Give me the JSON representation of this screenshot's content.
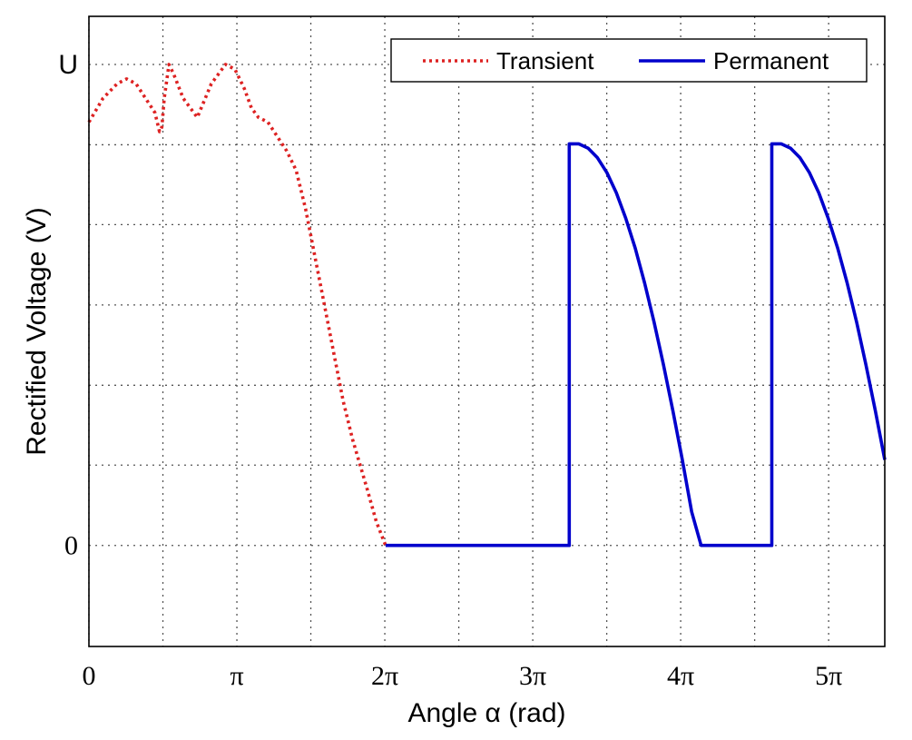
{
  "chart_data": {
    "type": "line",
    "title": "",
    "xlabel": "Angle α (rad)",
    "ylabel": "Rectified Voltage (V)",
    "xlim": [
      0,
      16.9
    ],
    "ylim": [
      -0.21,
      1.1
    ],
    "grid": true,
    "legend_position": "top-right",
    "x_ticks": [
      {
        "value": 0,
        "label": "0"
      },
      {
        "value": 3.14159,
        "label": "π"
      },
      {
        "value": 6.28319,
        "label": "2π"
      },
      {
        "value": 9.42478,
        "label": "3π"
      },
      {
        "value": 12.56637,
        "label": "4π"
      },
      {
        "value": 15.70796,
        "label": "5π"
      }
    ],
    "x_grid_values": [
      0,
      1.571,
      3.142,
      4.712,
      6.283,
      7.854,
      9.425,
      10.996,
      12.566,
      14.137,
      15.708
    ],
    "y_ticks": [
      {
        "value": 0,
        "label": "0"
      },
      {
        "value": 1,
        "label": "U"
      }
    ],
    "y_grid_values": [
      0,
      0.167,
      0.333,
      0.5,
      0.667,
      0.833,
      1.0
    ],
    "series": [
      {
        "name": "Transient",
        "style": "dotted",
        "color": "#dd2222",
        "x": [
          0.0,
          0.3,
          0.6,
          0.8,
          1.0,
          1.2,
          1.4,
          1.5,
          1.55,
          1.6,
          1.7,
          1.8,
          2.0,
          2.3,
          2.6,
          2.9,
          3.1,
          3.3,
          3.45,
          3.6,
          3.8,
          4.0,
          4.2,
          4.4,
          4.6,
          4.8,
          5.0,
          5.2,
          5.4,
          5.6,
          5.9,
          6.1,
          6.3
        ],
        "y": [
          0.88,
          0.93,
          0.96,
          0.97,
          0.96,
          0.93,
          0.9,
          0.86,
          0.87,
          0.93,
          1.0,
          0.98,
          0.93,
          0.89,
          0.96,
          1.0,
          0.99,
          0.95,
          0.91,
          0.89,
          0.88,
          0.85,
          0.82,
          0.78,
          0.7,
          0.6,
          0.5,
          0.4,
          0.3,
          0.22,
          0.12,
          0.05,
          0.0
        ]
      },
      {
        "name": "Permanent",
        "style": "solid",
        "color": "#0000cc",
        "x": [
          6.3,
          10.2,
          10.2,
          10.4,
          10.6,
          10.8,
          11.0,
          11.2,
          11.4,
          11.6,
          11.8,
          12.0,
          12.2,
          12.4,
          12.6,
          12.8,
          13.0,
          13.2,
          13.4,
          13.6,
          13.8,
          14.0,
          14.2,
          14.5,
          14.5,
          14.7,
          14.9,
          15.1,
          15.3,
          15.5,
          15.7,
          15.9,
          16.1,
          16.3,
          16.5,
          16.7,
          16.9
        ],
        "y": [
          0.0,
          0.0,
          0.835,
          0.835,
          0.826,
          0.806,
          0.775,
          0.733,
          0.68,
          0.618,
          0.546,
          0.465,
          0.376,
          0.28,
          0.178,
          0.07,
          0.0,
          0.0,
          0.0,
          0.0,
          0.0,
          0.0,
          0.0,
          0.0,
          0.835,
          0.835,
          0.826,
          0.806,
          0.775,
          0.733,
          0.68,
          0.618,
          0.546,
          0.465,
          0.376,
          0.28,
          0.178
        ]
      }
    ]
  }
}
